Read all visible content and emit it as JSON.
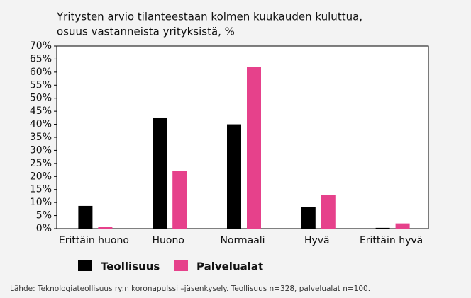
{
  "chart_data": {
    "type": "bar",
    "title": [
      "Yritysten arvio tilanteestaan kolmen kuukauden kuluttua,",
      "osuus vastanneista yrityksistä, %"
    ],
    "categories": [
      "Erittäin huono",
      "Huono",
      "Normaali",
      "Hyvä",
      "Erittäin hyvä"
    ],
    "series": [
      {
        "name": "Teollisuus",
        "color": "#000000",
        "values": [
          8.7,
          42.6,
          40,
          8.4,
          0.3
        ]
      },
      {
        "name": "Palvelualat",
        "color": "#e6418b",
        "values": [
          0.8,
          22,
          62,
          13,
          2
        ]
      }
    ],
    "ylim": [
      0,
      70
    ],
    "yticks": [
      {
        "value": 0,
        "label": "0%"
      },
      {
        "value": 5,
        "label": "5%"
      },
      {
        "value": 10,
        "label": "10%"
      },
      {
        "value": 15,
        "label": "15%"
      },
      {
        "value": 20,
        "label": "20%"
      },
      {
        "value": 25,
        "label": "25%"
      },
      {
        "value": 30,
        "label": "30%"
      },
      {
        "value": 35,
        "label": "35%"
      },
      {
        "value": 40,
        "label": "40%"
      },
      {
        "value": 45,
        "label": "45%"
      },
      {
        "value": 50,
        "label": "50%"
      },
      {
        "value": 55,
        "label": "55%"
      },
      {
        "value": 60,
        "label": "60%"
      },
      {
        "value": 65,
        "label": "65%"
      },
      {
        "value": 70,
        "label": "70%"
      }
    ],
    "legend": "bottom-left",
    "source": "Lähde: Teknologiateollisuus ry:n koronapulssi –jäsenkysely. Teollisuus n=328, palvelualat n=100."
  }
}
